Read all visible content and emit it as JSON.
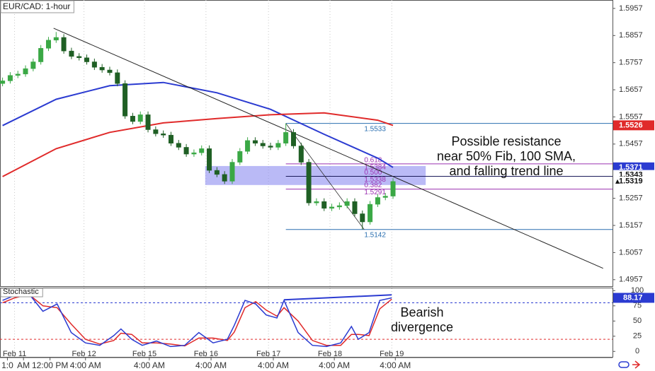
{
  "chart_data": [
    {
      "type": "candlestick",
      "title": "EUR/CAD: 1-hour",
      "x": [
        0,
        3,
        6,
        9,
        12,
        15,
        18,
        21,
        24,
        27,
        30,
        33,
        36,
        39,
        42,
        45,
        48,
        51,
        54,
        57,
        60,
        63,
        66,
        69,
        72,
        75,
        78,
        81,
        84,
        87,
        90,
        93,
        96,
        99,
        102,
        105,
        108,
        111,
        114,
        117,
        120,
        123,
        126,
        129,
        132,
        135,
        138,
        141,
        144,
        147,
        150,
        153
      ],
      "open": [
        1.568,
        1.569,
        1.571,
        1.5715,
        1.5735,
        1.576,
        1.581,
        1.584,
        1.585,
        1.58,
        1.578,
        1.5775,
        1.576,
        1.574,
        1.573,
        1.572,
        1.568,
        1.556,
        1.554,
        1.5565,
        1.551,
        1.5495,
        1.549,
        1.546,
        1.5445,
        1.542,
        1.5425,
        1.544,
        1.536,
        1.5345,
        1.532,
        1.539,
        1.543,
        1.547,
        1.546,
        1.545,
        1.5445,
        1.546,
        1.55,
        1.545,
        1.539,
        1.524,
        1.5245,
        1.522,
        1.5225,
        1.523,
        1.5245,
        1.52,
        1.517,
        1.5235,
        1.526,
        1.5265
      ],
      "high": [
        1.5702,
        1.5722,
        1.5727,
        1.5747,
        1.5772,
        1.5822,
        1.5852,
        1.587,
        1.5862,
        1.5812,
        1.5792,
        1.5787,
        1.5772,
        1.5752,
        1.5742,
        1.5732,
        1.5692,
        1.5572,
        1.5577,
        1.5577,
        1.5522,
        1.5507,
        1.5502,
        1.5472,
        1.5457,
        1.5437,
        1.5452,
        1.5452,
        1.5372,
        1.5357,
        1.5402,
        1.5442,
        1.5482,
        1.5482,
        1.5472,
        1.5462,
        1.5472,
        1.5533,
        1.5512,
        1.5462,
        1.5402,
        1.5257,
        1.5257,
        1.5237,
        1.5242,
        1.5257,
        1.5257,
        1.5212,
        1.5247,
        1.5272,
        1.5277,
        1.5331
      ],
      "low": [
        1.567,
        1.568,
        1.57,
        1.5705,
        1.5725,
        1.575,
        1.58,
        1.583,
        1.579,
        1.577,
        1.5765,
        1.575,
        1.573,
        1.572,
        1.571,
        1.567,
        1.555,
        1.553,
        1.553,
        1.55,
        1.5485,
        1.548,
        1.545,
        1.5435,
        1.541,
        1.541,
        1.5415,
        1.535,
        1.5335,
        1.531,
        1.531,
        1.538,
        1.542,
        1.545,
        1.544,
        1.5435,
        1.5435,
        1.545,
        1.544,
        1.538,
        1.523,
        1.523,
        1.521,
        1.521,
        1.5215,
        1.522,
        1.519,
        1.5142,
        1.516,
        1.5225,
        1.525,
        1.5255
      ],
      "close": [
        1.569,
        1.571,
        1.5715,
        1.5735,
        1.576,
        1.581,
        1.584,
        1.585,
        1.58,
        1.578,
        1.5775,
        1.576,
        1.574,
        1.573,
        1.572,
        1.568,
        1.556,
        1.554,
        1.5565,
        1.551,
        1.5495,
        1.549,
        1.546,
        1.5445,
        1.542,
        1.5425,
        1.544,
        1.536,
        1.5345,
        1.532,
        1.539,
        1.543,
        1.547,
        1.546,
        1.545,
        1.5445,
        1.546,
        1.55,
        1.545,
        1.539,
        1.524,
        1.5245,
        1.522,
        1.5225,
        1.523,
        1.5245,
        1.52,
        1.517,
        1.5235,
        1.526,
        1.5265,
        1.5319
      ],
      "up_color": "#3aa845",
      "down_color": "#1f5f24",
      "xlim": [
        -1,
        239
      ],
      "ylim": [
        1.4933,
        1.5988
      ],
      "yticks": [
        1.5957,
        1.5857,
        1.5757,
        1.5657,
        1.5557,
        1.5457,
        1.5357,
        1.5257,
        1.5157,
        1.5057,
        1.4957
      ],
      "series": [
        {
          "color": "#2b3bd1",
          "x": [
            0,
            21,
            42,
            63,
            84,
            105,
            126,
            147,
            153
          ],
          "values": [
            1.5525,
            1.5622,
            1.5672,
            1.5684,
            1.5646,
            1.5585,
            1.5493,
            1.5405,
            1.5371
          ],
          "show_last": true
        },
        {
          "color": "#e02a2a",
          "x": [
            0,
            21,
            42,
            63,
            84,
            105,
            126,
            147,
            153
          ],
          "values": [
            1.5337,
            1.544,
            1.55,
            1.5535,
            1.5551,
            1.5565,
            1.5572,
            1.5545,
            1.5526
          ],
          "show_last": true
        }
      ],
      "other_price": 1.5343,
      "trend_line": {
        "x": [
          20,
          235.3
        ],
        "values": [
          1.5884,
          1.4999
        ],
        "color": "#222222"
      },
      "zone": {
        "x": [
          79.4,
          165.8
        ],
        "values": [
          1.5376,
          1.5306
        ],
        "color": "#8c8cf0"
      },
      "fib": {
        "x": [
          111,
          141.7
        ],
        "high": 1.5533,
        "low": 1.5142,
        "color": "#2a6fb0",
        "level_color": "#9b30b0",
        "levels": [
          {
            "ratio": 0.618,
            "value": 1.5384
          },
          {
            "ratio": {
              "value": 0.5,
              "label": "0.500"
            },
            "value": 1.5338
          },
          {
            "ratio": 0.382,
            "value": 1.5291
          }
        ]
      },
      "annotation": {
        "lines": [
          "Possible resistance",
          "near 50% Fib, 100 SMA,",
          "and falling trend line"
        ]
      }
    },
    {
      "type": "line",
      "title": "Stochastic",
      "x": [
        0,
        4.7,
        10.3,
        15.8,
        21.4,
        26.9,
        32.5,
        38.1,
        43.6,
        46.4,
        50.6,
        54.7,
        60.3,
        65.8,
        71.4,
        76.9,
        82.5,
        88.1,
        90.8,
        95,
        99.2,
        103.3,
        107.5,
        110.3,
        115.8,
        121.4,
        126.9,
        132.5,
        136.7,
        139.4,
        143.6,
        147.8,
        152.5
      ],
      "series": [
        {
          "color": "#2b3bd1",
          "values": [
            84,
            92,
            95,
            66,
            78,
            31,
            14,
            10,
            26,
            37,
            20,
            10,
            17,
            8,
            10,
            31,
            14,
            20,
            43,
            84,
            78,
            60,
            55,
            84,
            31,
            10,
            8,
            14,
            41,
            20,
            31,
            84,
            88.17
          ],
          "show_last": true
        },
        {
          "color": "#e02a2a",
          "values": [
            80,
            88,
            94,
            75,
            72,
            45,
            20,
            12,
            18,
            30,
            28,
            14,
            14,
            12,
            9,
            22,
            22,
            18,
            32,
            72,
            82,
            68,
            58,
            72,
            50,
            18,
            10,
            10,
            28,
            28,
            26,
            70,
            86
          ]
        }
      ],
      "xlim": [
        -1,
        239
      ],
      "ylim": [
        -9,
        105
      ],
      "yticks": [
        100,
        75,
        50,
        25,
        0
      ],
      "levels": [
        {
          "value": 80,
          "color": "#2b3bd1"
        },
        {
          "value": 20,
          "color": "#e02a2a"
        }
      ],
      "divergence": {
        "x": [
          110.3,
          152.5
        ],
        "values": [
          85,
          93
        ],
        "color": "#2b3bd1"
      },
      "annotation": {
        "lines": [
          "Bearish",
          "divergence"
        ]
      },
      "date_ticks": [
        {
          "value": 4.7,
          "label": "Feb 11"
        },
        {
          "value": 31.9,
          "label": "Feb 12"
        },
        {
          "value": 55.6,
          "label": "Feb 15"
        },
        {
          "value": 79.7,
          "label": "Feb 16"
        },
        {
          "value": 104.2,
          "label": "Feb 17"
        },
        {
          "value": 128.3,
          "label": "Feb 18"
        },
        {
          "value": 152.5,
          "label": "Feb 19"
        }
      ],
      "xticks": [
        {
          "value": 1.9,
          "label": "1:0"
        },
        {
          "value": 8.2,
          "label": "AM"
        },
        {
          "value": 18.6,
          "label": "12:00 PM"
        },
        {
          "value": 32.5,
          "label": "4:00 AM"
        },
        {
          "value": 57.5,
          "label": "4:00 AM"
        },
        {
          "value": 81.7,
          "label": "4:00 AM"
        },
        {
          "value": 106.1,
          "label": "4:00 AM"
        },
        {
          "value": 130,
          "label": "4:00 AM"
        },
        {
          "value": 153.9,
          "label": "4:00 AM"
        }
      ]
    }
  ]
}
